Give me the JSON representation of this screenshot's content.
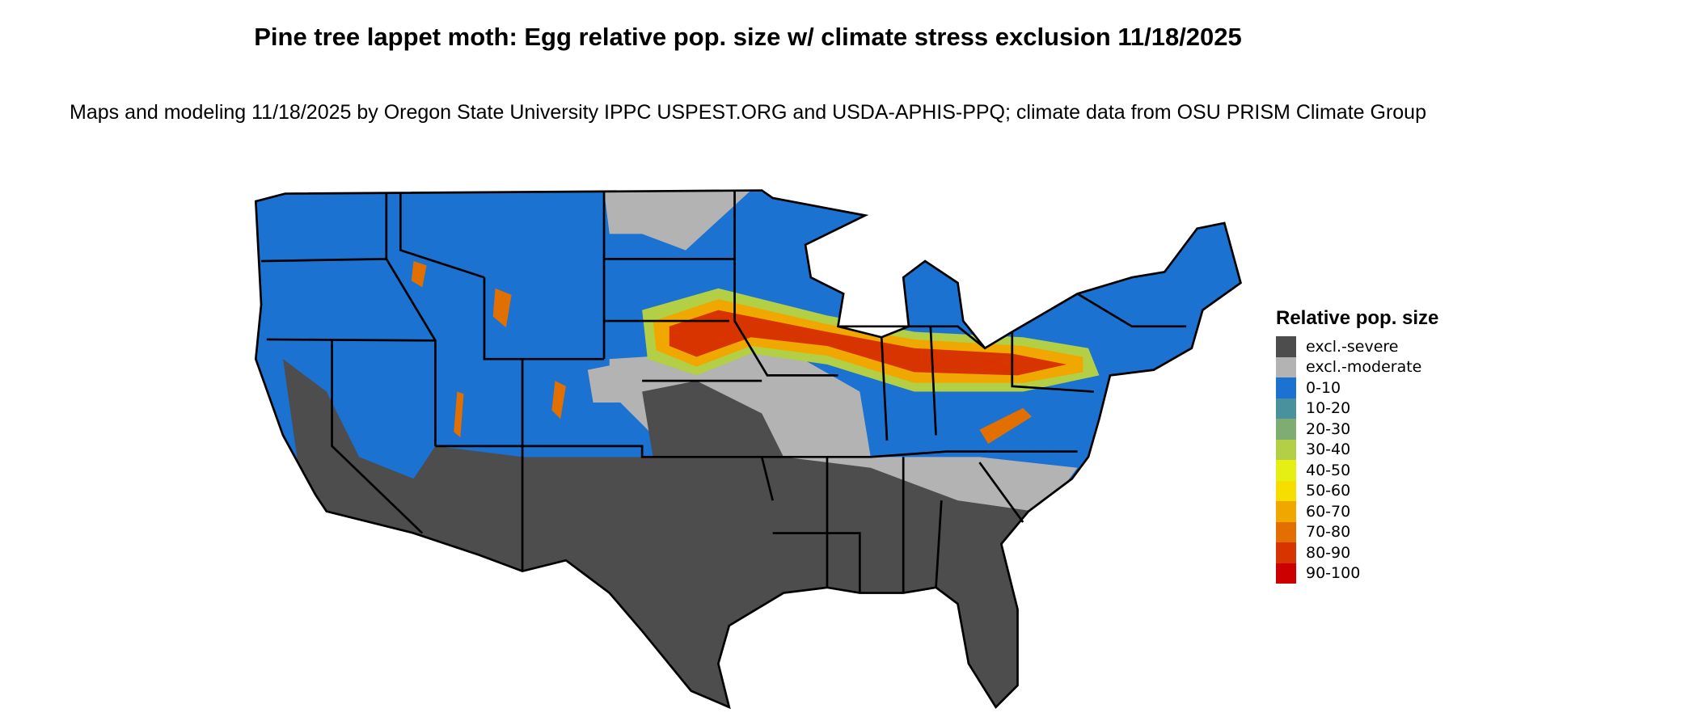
{
  "title": "Pine tree lappet moth: Egg relative pop. size w/ climate stress exclusion 11/18/2025",
  "subtitle": "Maps and modeling 11/18/2025 by Oregon State University IPPC USPEST.ORG and USDA-APHIS-PPQ; climate data from OSU PRISM Climate Group",
  "legend": {
    "title": "Relative pop. size",
    "items": [
      {
        "label": "excl.-severe",
        "color": "#4d4d4d"
      },
      {
        "label": "excl.-moderate",
        "color": "#b3b3b3"
      },
      {
        "label": "0-10",
        "color": "#1b72d0"
      },
      {
        "label": "10-20",
        "color": "#4a919e"
      },
      {
        "label": "20-30",
        "color": "#7dad72"
      },
      {
        "label": "30-40",
        "color": "#b2cf45"
      },
      {
        "label": "40-50",
        "color": "#e5ef14"
      },
      {
        "label": "50-60",
        "color": "#f6de00"
      },
      {
        "label": "60-70",
        "color": "#f0a800"
      },
      {
        "label": "70-80",
        "color": "#e27000"
      },
      {
        "label": "80-90",
        "color": "#d83400"
      },
      {
        "label": "90-100",
        "color": "#cc0000"
      }
    ]
  },
  "map": {
    "region": "Contiguous United States",
    "pattern": "Highest values (60-100) in band across Nebraska, Iowa, Illinois, Indiana, Ohio, Pennsylvania; southern states excluded (severe); mountain West mostly 0-10 with scattered hot spots"
  }
}
